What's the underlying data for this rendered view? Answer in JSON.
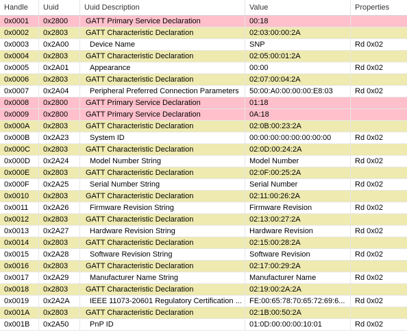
{
  "columns": [
    "Handle",
    "Uuid",
    "Uuid Description",
    "Value",
    "Properties"
  ],
  "colors": {
    "service": "#ffc0cb",
    "characteristic": "#eeeab0",
    "attribute": "#ffffff"
  },
  "rows": [
    {
      "type": "service",
      "handle": "0x0001",
      "uuid": "0x2800",
      "desc": "GATT Primary Service Declaration",
      "value": "00:18",
      "props": ""
    },
    {
      "type": "char",
      "handle": "0x0002",
      "uuid": "0x2803",
      "desc": "GATT Characteristic Declaration",
      "value": "02:03:00:00:2A",
      "props": ""
    },
    {
      "type": "attr",
      "handle": "0x0003",
      "uuid": "0x2A00",
      "desc": "Device Name",
      "value": "SNP",
      "props": "Rd  0x02"
    },
    {
      "type": "char",
      "handle": "0x0004",
      "uuid": "0x2803",
      "desc": "GATT Characteristic Declaration",
      "value": "02:05:00:01:2A",
      "props": ""
    },
    {
      "type": "attr",
      "handle": "0x0005",
      "uuid": "0x2A01",
      "desc": "Appearance",
      "value": "00:00",
      "props": "Rd  0x02"
    },
    {
      "type": "char",
      "handle": "0x0006",
      "uuid": "0x2803",
      "desc": "GATT Characteristic Declaration",
      "value": "02:07:00:04:2A",
      "props": ""
    },
    {
      "type": "attr",
      "handle": "0x0007",
      "uuid": "0x2A04",
      "desc": "Peripheral Preferred Connection Parameters",
      "value": "50:00:A0:00:00:00:E8:03",
      "props": "Rd  0x02"
    },
    {
      "type": "service",
      "handle": "0x0008",
      "uuid": "0x2800",
      "desc": "GATT Primary Service Declaration",
      "value": "01:18",
      "props": ""
    },
    {
      "type": "service",
      "handle": "0x0009",
      "uuid": "0x2800",
      "desc": "GATT Primary Service Declaration",
      "value": "0A:18",
      "props": ""
    },
    {
      "type": "char",
      "handle": "0x000A",
      "uuid": "0x2803",
      "desc": "GATT Characteristic Declaration",
      "value": "02:0B:00:23:2A",
      "props": ""
    },
    {
      "type": "attr",
      "handle": "0x000B",
      "uuid": "0x2A23",
      "desc": "System ID",
      "value": "00:00:00:00:00:00:00:00",
      "props": "Rd  0x02"
    },
    {
      "type": "char",
      "handle": "0x000C",
      "uuid": "0x2803",
      "desc": "GATT Characteristic Declaration",
      "value": "02:0D:00:24:2A",
      "props": ""
    },
    {
      "type": "attr",
      "handle": "0x000D",
      "uuid": "0x2A24",
      "desc": "Model Number String",
      "value": "Model Number",
      "props": "Rd  0x02"
    },
    {
      "type": "char",
      "handle": "0x000E",
      "uuid": "0x2803",
      "desc": "GATT Characteristic Declaration",
      "value": "02:0F:00:25:2A",
      "props": ""
    },
    {
      "type": "attr",
      "handle": "0x000F",
      "uuid": "0x2A25",
      "desc": "Serial Number String",
      "value": "Serial Number",
      "props": "Rd  0x02"
    },
    {
      "type": "char",
      "handle": "0x0010",
      "uuid": "0x2803",
      "desc": "GATT Characteristic Declaration",
      "value": "02:11:00:26:2A",
      "props": ""
    },
    {
      "type": "attr",
      "handle": "0x0011",
      "uuid": "0x2A26",
      "desc": "Firmware Revision String",
      "value": "Firmware Revision",
      "props": "Rd  0x02"
    },
    {
      "type": "char",
      "handle": "0x0012",
      "uuid": "0x2803",
      "desc": "GATT Characteristic Declaration",
      "value": "02:13:00:27:2A",
      "props": ""
    },
    {
      "type": "attr",
      "handle": "0x0013",
      "uuid": "0x2A27",
      "desc": "Hardware Revision String",
      "value": "Hardware Revision",
      "props": "Rd  0x02"
    },
    {
      "type": "char",
      "handle": "0x0014",
      "uuid": "0x2803",
      "desc": "GATT Characteristic Declaration",
      "value": "02:15:00:28:2A",
      "props": ""
    },
    {
      "type": "attr",
      "handle": "0x0015",
      "uuid": "0x2A28",
      "desc": "Software Revision String",
      "value": "Software Revision",
      "props": "Rd  0x02"
    },
    {
      "type": "char",
      "handle": "0x0016",
      "uuid": "0x2803",
      "desc": "GATT Characteristic Declaration",
      "value": "02:17:00:29:2A",
      "props": ""
    },
    {
      "type": "attr",
      "handle": "0x0017",
      "uuid": "0x2A29",
      "desc": "Manufacturer Name String",
      "value": "Manufacturer Name",
      "props": "Rd  0x02"
    },
    {
      "type": "char",
      "handle": "0x0018",
      "uuid": "0x2803",
      "desc": "GATT Characteristic Declaration",
      "value": "02:19:00:2A:2A",
      "props": ""
    },
    {
      "type": "attr",
      "handle": "0x0019",
      "uuid": "0x2A2A",
      "desc": "IEEE 11073-20601 Regulatory Certification ...",
      "value": "FE:00:65:78:70:65:72:69:6...",
      "props": "Rd  0x02"
    },
    {
      "type": "char",
      "handle": "0x001A",
      "uuid": "0x2803",
      "desc": "GATT Characteristic Declaration",
      "value": "02:1B:00:50:2A",
      "props": ""
    },
    {
      "type": "attr",
      "handle": "0x001B",
      "uuid": "0x2A50",
      "desc": "PnP ID",
      "value": "01:0D:00:00:00:10:01",
      "props": "Rd  0x02"
    }
  ]
}
